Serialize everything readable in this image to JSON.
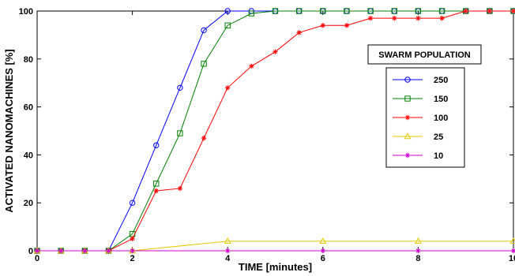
{
  "chart_data": {
    "type": "line",
    "title": "",
    "xlabel": "TIME [minutes]",
    "ylabel": "ACTIVATED NANOMACHINES [%]",
    "xlim": [
      0,
      10
    ],
    "ylim": [
      0,
      100
    ],
    "xticks": [
      0,
      2,
      4,
      6,
      8,
      10
    ],
    "yticks": [
      0,
      20,
      40,
      60,
      80,
      100
    ],
    "grid": false,
    "legend_title": "SWARM POPULATION",
    "legend_position": "right",
    "series": [
      {
        "name": "250",
        "color": "#0000ff",
        "marker": "circle",
        "x": [
          0,
          0.5,
          1,
          1.5,
          2,
          2.5,
          3,
          3.5,
          4,
          4.5,
          5,
          5.5,
          6,
          6.5,
          7,
          7.5,
          8,
          8.5,
          9,
          9.5,
          10
        ],
        "y": [
          0,
          0,
          0,
          0,
          20,
          44,
          68,
          92,
          100,
          100,
          100,
          100,
          100,
          100,
          100,
          100,
          100,
          100,
          100,
          100,
          100
        ]
      },
      {
        "name": "150",
        "color": "#008000",
        "marker": "square",
        "x": [
          0,
          0.5,
          1,
          1.5,
          2,
          2.5,
          3,
          3.5,
          4,
          4.5,
          5,
          5.5,
          6,
          6.5,
          7,
          7.5,
          8,
          8.5,
          9,
          9.5,
          10
        ],
        "y": [
          0,
          0,
          0,
          0,
          7,
          28,
          49,
          78,
          94,
          99,
          100,
          100,
          100,
          100,
          100,
          100,
          100,
          100,
          100,
          100,
          100
        ]
      },
      {
        "name": "100",
        "color": "#ff0000",
        "marker": "star",
        "x": [
          0,
          0.5,
          1,
          1.5,
          2,
          2.5,
          3,
          3.5,
          4,
          4.5,
          5,
          5.5,
          6,
          6.5,
          7,
          7.5,
          8,
          8.5,
          9,
          9.5,
          10
        ],
        "y": [
          0,
          0,
          0,
          0,
          5,
          25,
          26,
          47,
          68,
          77,
          83,
          91,
          94,
          94,
          97,
          97,
          97,
          97,
          100,
          100,
          100
        ]
      },
      {
        "name": "25",
        "color": "#e6c800",
        "marker": "triangle",
        "x": [
          0,
          0.5,
          1,
          1.5,
          2,
          4,
          6,
          8,
          10
        ],
        "y": [
          0,
          0,
          0,
          0,
          0,
          4,
          4,
          4,
          4
        ]
      },
      {
        "name": "10",
        "color": "#cc00cc",
        "marker": "star",
        "x": [
          0,
          0.5,
          1,
          1.5,
          2,
          4,
          6,
          8,
          10
        ],
        "y": [
          0,
          0,
          0,
          0,
          0,
          0,
          0,
          0,
          0
        ]
      }
    ]
  }
}
